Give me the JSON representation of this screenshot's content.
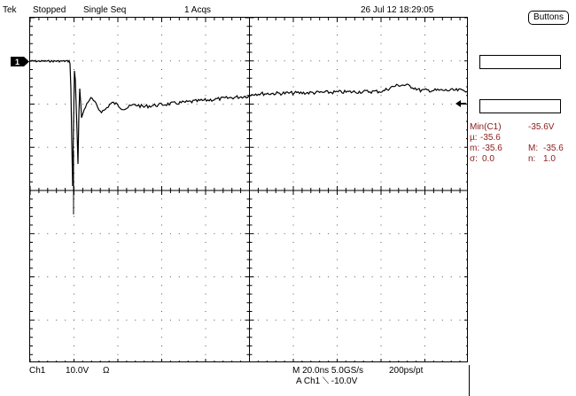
{
  "status": {
    "brand": "Tek",
    "run_state": "Stopped",
    "mode": "Single Seq",
    "acqs": "1 Acqs",
    "timestamp": "26 Jul 12 18:29:05"
  },
  "buttons_label": "Buttons",
  "channel_marker": "1",
  "measurements": {
    "title": "Min(C1)",
    "value": "-35.6V",
    "mu_label": "µ:",
    "mu_value": "-35.6",
    "m_label": "m:",
    "m_value": "-35.6",
    "M_label": "M:",
    "M_value": "-35.6",
    "sigma_label": "σ:",
    "sigma_value": "0.0",
    "n_label": "n:",
    "n_value": "1.0"
  },
  "bottom": {
    "channel": "Ch1",
    "volts_div": "10.0V",
    "impedance": "Ω",
    "timebase": "M 20.0ns 5.0GS/s",
    "resolution": "200ps/pt",
    "trigger": "A  Ch1  ⟍  -10.0V"
  },
  "colors": {
    "trace": "#000000",
    "measurement_text": "#8b1a1a",
    "background": "#ffffff"
  },
  "icons": [
    "channel-1-ground-marker-icon",
    "trigger-position-icon",
    "trigger-level-arrow-icon"
  ]
}
